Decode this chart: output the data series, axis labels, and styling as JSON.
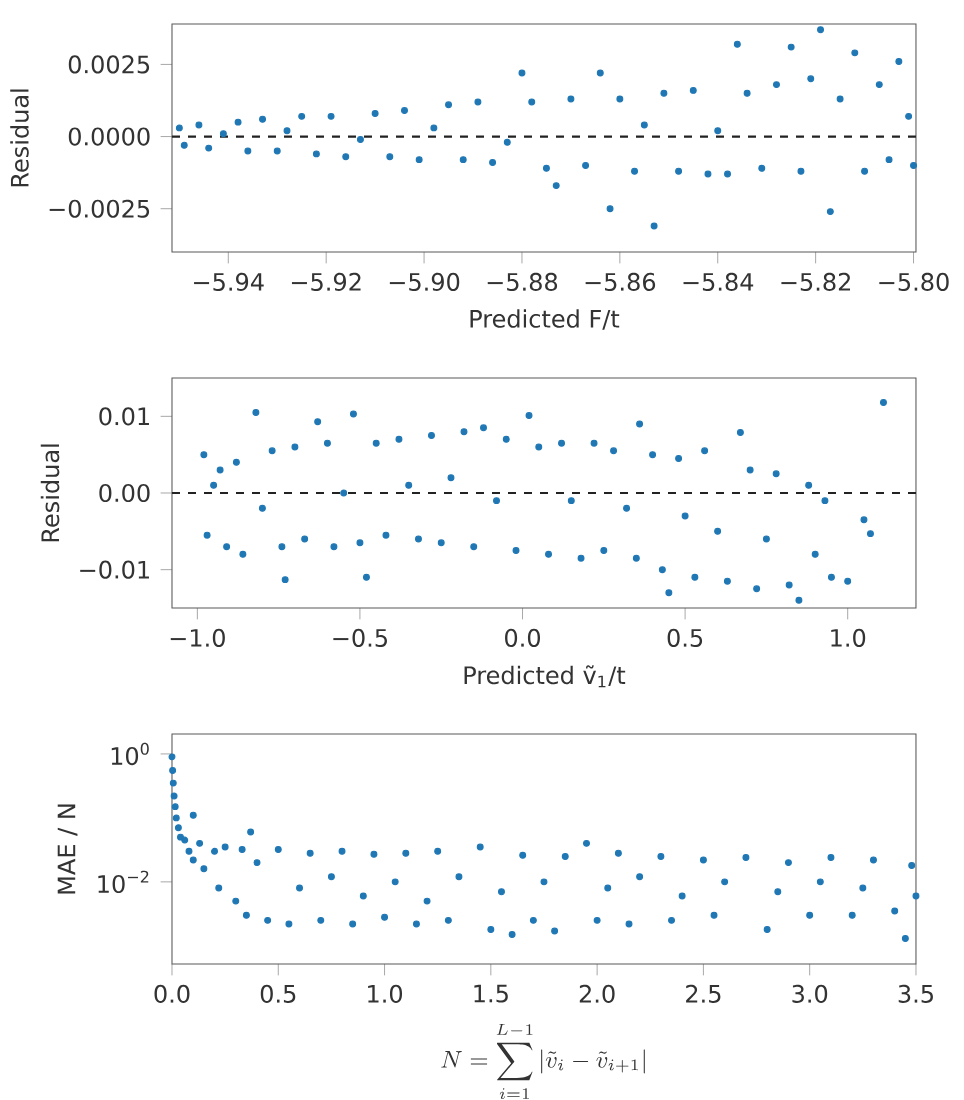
{
  "chart_data": [
    {
      "type": "scatter",
      "xlabel": "Predicted F/t",
      "ylabel": "Residual",
      "color": "#1f77b4",
      "xlim": [
        -5.9515,
        -5.7995
      ],
      "ylim": [
        -0.004,
        0.0039
      ],
      "xticks": [
        {
          "value": -5.94,
          "label": "−5.94"
        },
        {
          "value": -5.92,
          "label": "−5.92"
        },
        {
          "value": -5.9,
          "label": "−5.90"
        },
        {
          "value": -5.88,
          "label": "−5.88"
        },
        {
          "value": -5.86,
          "label": "−5.86"
        },
        {
          "value": -5.84,
          "label": "−5.84"
        },
        {
          "value": -5.82,
          "label": "−5.82"
        },
        {
          "value": -5.8,
          "label": "−5.80"
        }
      ],
      "yticks": [
        {
          "value": -0.0025,
          "label": "−0.0025"
        },
        {
          "value": 0,
          "label": "0.0000"
        },
        {
          "value": 0.0025,
          "label": "0.0025"
        }
      ],
      "ref_lines": [
        {
          "axis": "y",
          "value": 0,
          "color": "#222222",
          "line_style": "dashed"
        }
      ],
      "x": [
        -5.95,
        -5.949,
        -5.946,
        -5.944,
        -5.941,
        -5.938,
        -5.936,
        -5.933,
        -5.93,
        -5.928,
        -5.925,
        -5.922,
        -5.919,
        -5.916,
        -5.913,
        -5.91,
        -5.907,
        -5.904,
        -5.901,
        -5.898,
        -5.895,
        -5.892,
        -5.889,
        -5.886,
        -5.883,
        -5.88,
        -5.878,
        -5.875,
        -5.873,
        -5.87,
        -5.867,
        -5.864,
        -5.862,
        -5.86,
        -5.857,
        -5.855,
        -5.853,
        -5.851,
        -5.848,
        -5.845,
        -5.842,
        -5.84,
        -5.836,
        -5.834,
        -5.831,
        -5.828,
        -5.825,
        -5.823,
        -5.821,
        -5.819,
        -5.817,
        -5.815,
        -5.812,
        -5.81,
        -5.807,
        -5.805,
        -5.803,
        -5.801,
        -5.8,
        -5.838
      ],
      "values": [
        0.0003,
        -0.0003,
        0.0004,
        -0.0004,
        0.0001,
        0.0005,
        -0.0005,
        0.0006,
        -0.0005,
        0.0002,
        0.0007,
        -0.0006,
        0.0007,
        -0.0007,
        -0.0001,
        0.0008,
        -0.0007,
        0.0009,
        -0.0008,
        0.0003,
        0.0011,
        -0.0008,
        0.0012,
        -0.0009,
        -0.0002,
        0.0022,
        0.0012,
        -0.0011,
        -0.0017,
        0.0013,
        -0.001,
        0.0022,
        -0.0025,
        0.0013,
        -0.0012,
        0.0004,
        -0.0031,
        0.0015,
        -0.0012,
        0.0016,
        -0.0013,
        0.0002,
        0.0032,
        0.0015,
        -0.0011,
        0.0018,
        0.0031,
        -0.0012,
        0.002,
        0.0037,
        -0.0026,
        0.0013,
        0.0029,
        -0.0012,
        0.0018,
        -0.0008,
        0.0026,
        0.0007,
        -0.001,
        -0.0013
      ]
    },
    {
      "type": "scatter",
      "xlabel": "Predicted ṽ$_{1}$/t",
      "ylabel": "Residual",
      "color": "#1f77b4",
      "xlim": [
        -1.078,
        1.21
      ],
      "ylim": [
        -0.015,
        0.015
      ],
      "xticks": [
        {
          "value": -1,
          "label": "−1.0"
        },
        {
          "value": -0.5,
          "label": "−0.5"
        },
        {
          "value": 0,
          "label": "0.0"
        },
        {
          "value": 0.5,
          "label": "0.5"
        },
        {
          "value": 1,
          "label": "1.0"
        }
      ],
      "yticks": [
        {
          "value": -0.01,
          "label": "−0.01"
        },
        {
          "value": 0,
          "label": "0.00"
        },
        {
          "value": 0.01,
          "label": "0.01"
        }
      ],
      "ref_lines": [
        {
          "axis": "y",
          "value": 0,
          "color": "#222222",
          "line_style": "dashed"
        }
      ],
      "x": [
        -0.98,
        -0.97,
        -0.95,
        -0.93,
        -0.91,
        -0.88,
        -0.86,
        -0.82,
        -0.8,
        -0.77,
        -0.74,
        -0.73,
        -0.7,
        -0.67,
        -0.63,
        -0.6,
        -0.58,
        -0.55,
        -0.52,
        -0.5,
        -0.48,
        -0.45,
        -0.42,
        -0.38,
        -0.35,
        -0.32,
        -0.28,
        -0.25,
        -0.22,
        -0.18,
        -0.15,
        -0.12,
        -0.08,
        -0.05,
        -0.02,
        0.02,
        0.05,
        0.08,
        0.12,
        0.15,
        0.18,
        0.22,
        0.25,
        0.28,
        0.32,
        0.35,
        0.36,
        0.4,
        0.43,
        0.45,
        0.48,
        0.5,
        0.53,
        0.56,
        0.6,
        0.63,
        0.67,
        0.7,
        0.72,
        0.75,
        0.78,
        0.82,
        0.85,
        0.88,
        0.9,
        0.93,
        0.95,
        1.0,
        1.05,
        1.07,
        1.11
      ],
      "values": [
        0.005,
        -0.0055,
        0.001,
        0.003,
        -0.007,
        0.004,
        -0.008,
        0.0105,
        -0.002,
        0.0055,
        -0.007,
        -0.0113,
        0.006,
        -0.006,
        0.0093,
        0.0065,
        -0.007,
        0.0,
        0.0103,
        -0.0065,
        -0.011,
        0.0065,
        -0.0055,
        0.007,
        0.001,
        -0.006,
        0.0075,
        -0.0065,
        0.002,
        0.008,
        -0.007,
        0.0085,
        -0.001,
        0.007,
        -0.0075,
        0.0101,
        0.006,
        -0.008,
        0.0065,
        -0.001,
        -0.0085,
        0.0065,
        -0.0075,
        0.0055,
        -0.002,
        -0.0085,
        0.009,
        0.005,
        -0.01,
        -0.013,
        0.0045,
        -0.003,
        -0.011,
        0.0055,
        -0.005,
        -0.0115,
        0.0079,
        0.003,
        -0.0125,
        -0.006,
        0.0025,
        -0.012,
        -0.014,
        0.001,
        -0.008,
        -0.001,
        -0.011,
        -0.0115,
        -0.0035,
        -0.0053,
        0.0118
      ]
    },
    {
      "type": "scatter",
      "xlabel": "N = \\sum_{i=1}^{L-1} |\\tilde{v}_i - \\tilde{v}_{i+1}|",
      "ylabel": "MAE / N",
      "color": "#1f77b4",
      "log": "y",
      "xlim": [
        0,
        3.5
      ],
      "ylim": [
        0.00052,
        2.05
      ],
      "xticks": [
        {
          "value": 0,
          "label": "0.0"
        },
        {
          "value": 0.5,
          "label": "0.5"
        },
        {
          "value": 1,
          "label": "1.0"
        },
        {
          "value": 1.5,
          "label": "1.5"
        },
        {
          "value": 2,
          "label": "2.0"
        },
        {
          "value": 2.5,
          "label": "2.5"
        },
        {
          "value": 3,
          "label": "3.0"
        },
        {
          "value": 3.5,
          "label": "3.5"
        }
      ],
      "yticks": [
        {
          "value": 0.01,
          "label": "10$^{−2}$"
        },
        {
          "value": 1,
          "label": "10$^{0}$"
        }
      ],
      "x": [
        0.0,
        0.003,
        0.006,
        0.01,
        0.015,
        0.02,
        0.03,
        0.04,
        0.06,
        0.08,
        0.1,
        0.1,
        0.13,
        0.15,
        0.2,
        0.22,
        0.25,
        0.3,
        0.33,
        0.35,
        0.37,
        0.4,
        0.45,
        0.5,
        0.55,
        0.6,
        0.65,
        0.7,
        0.75,
        0.8,
        0.85,
        0.9,
        0.95,
        1.0,
        1.05,
        1.1,
        1.15,
        1.2,
        1.25,
        1.3,
        1.35,
        1.45,
        1.5,
        1.55,
        1.6,
        1.65,
        1.7,
        1.75,
        1.8,
        1.85,
        1.95,
        2.0,
        2.05,
        2.1,
        2.15,
        2.2,
        2.3,
        2.35,
        2.4,
        2.5,
        2.55,
        2.6,
        2.7,
        2.8,
        2.85,
        2.9,
        3.0,
        3.05,
        3.1,
        3.2,
        3.25,
        3.3,
        3.4,
        3.45,
        3.48,
        3.5
      ],
      "values": [
        0.9,
        0.55,
        0.35,
        0.22,
        0.15,
        0.1,
        0.07,
        0.05,
        0.045,
        0.03,
        0.11,
        0.022,
        0.04,
        0.016,
        0.03,
        0.008,
        0.035,
        0.005,
        0.032,
        0.003,
        0.06,
        0.02,
        0.0025,
        0.032,
        0.0022,
        0.008,
        0.028,
        0.0025,
        0.012,
        0.03,
        0.0022,
        0.006,
        0.027,
        0.0028,
        0.01,
        0.028,
        0.0022,
        0.005,
        0.03,
        0.0025,
        0.012,
        0.035,
        0.0018,
        0.007,
        0.0015,
        0.026,
        0.0025,
        0.01,
        0.0017,
        0.025,
        0.04,
        0.0025,
        0.008,
        0.028,
        0.0022,
        0.012,
        0.025,
        0.0025,
        0.006,
        0.022,
        0.003,
        0.01,
        0.024,
        0.0018,
        0.007,
        0.02,
        0.003,
        0.01,
        0.024,
        0.003,
        0.008,
        0.022,
        0.0035,
        0.0013,
        0.018,
        0.006
      ]
    }
  ]
}
